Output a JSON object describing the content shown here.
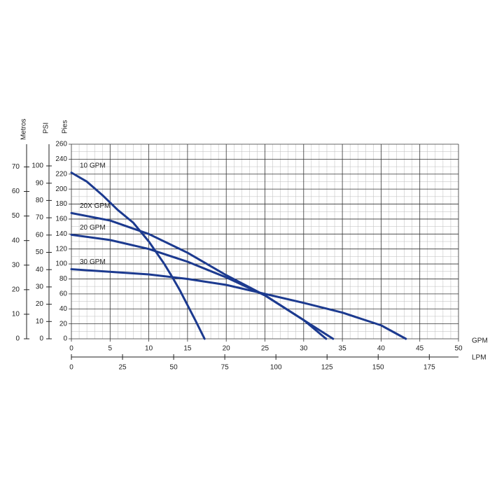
{
  "chart_data": {
    "type": "line",
    "x_label": "GPM",
    "x2_label": "LPM",
    "y_label": "Pies",
    "y2_label": "PSI",
    "y3_label": "Metros",
    "xlim": [
      0,
      50
    ],
    "xticks": [
      0,
      5,
      10,
      15,
      20,
      25,
      30,
      35,
      40,
      45,
      50
    ],
    "x2lim": [
      0,
      189.27
    ],
    "x2ticks": [
      0,
      25,
      50,
      75,
      100,
      125,
      150,
      175
    ],
    "ylim": [
      0,
      260
    ],
    "yticks": [
      0,
      20,
      40,
      60,
      80,
      100,
      120,
      140,
      160,
      180,
      200,
      220,
      240,
      260
    ],
    "y2lim": [
      0,
      112.55
    ],
    "y2ticks": [
      0,
      10,
      20,
      30,
      40,
      50,
      60,
      70,
      80,
      90,
      100
    ],
    "y3lim": [
      0,
      79.25
    ],
    "y3ticks": [
      0,
      10,
      20,
      30,
      40,
      50,
      60,
      70
    ],
    "grid": true,
    "series": [
      {
        "name": "10 GPM",
        "color": "#1c3a8f",
        "x": [
          0,
          2,
          4,
          6,
          8,
          10,
          12,
          13,
          14,
          15,
          16,
          17.2
        ],
        "values": [
          222,
          210,
          192,
          172,
          155,
          130,
          100,
          83,
          65,
          45,
          25,
          0
        ]
      },
      {
        "name": "20X GPM",
        "color": "#1c3a8f",
        "x": [
          0,
          5,
          10,
          15,
          20,
          25,
          30,
          33.8
        ],
        "values": [
          168,
          158,
          140,
          115,
          85,
          58,
          25,
          0
        ]
      },
      {
        "name": "20 GPM",
        "color": "#1c3a8f",
        "x": [
          0,
          5,
          10,
          15,
          20,
          25,
          30,
          32.9
        ],
        "values": [
          139,
          132,
          120,
          103,
          82,
          58,
          25,
          0
        ]
      },
      {
        "name": "30 GPM",
        "color": "#1c3a8f",
        "x": [
          0,
          10,
          15,
          20,
          25,
          30,
          35,
          40,
          43.2
        ],
        "values": [
          93,
          86,
          80,
          72,
          60,
          48,
          35,
          18,
          0
        ]
      }
    ]
  }
}
